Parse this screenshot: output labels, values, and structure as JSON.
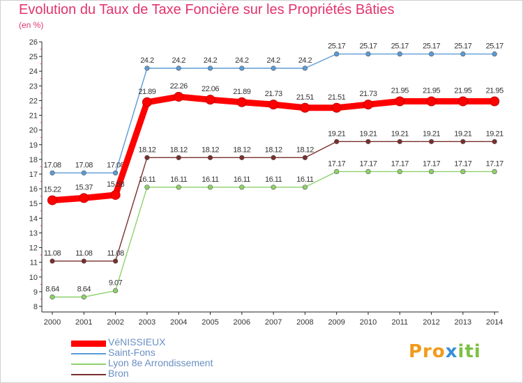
{
  "title": "Evolution du Taux de Taxe Foncière sur les Propriétés Bâties",
  "unit": "(en %)",
  "logo": {
    "p1": "Pro",
    "p2": "x",
    "p3": "iti"
  },
  "chart_data": {
    "type": "line",
    "title": "Evolution du Taux de Taxe Foncière sur les Propriétés Bâties",
    "ylabel": "(en %)",
    "xlabel": "",
    "ylim": [
      8,
      26
    ],
    "yticks": [
      8,
      9,
      10,
      11,
      12,
      13,
      14,
      15,
      16,
      17,
      18,
      19,
      20,
      21,
      22,
      23,
      24,
      25,
      26
    ],
    "categories": [
      "2000",
      "2001",
      "2002",
      "2003",
      "2004",
      "2005",
      "2006",
      "2007",
      "2008",
      "2009",
      "2010",
      "2011",
      "2012",
      "2013",
      "2014"
    ],
    "grid": false,
    "legend": "bottom-left",
    "series": [
      {
        "name": "VéNISSIEUX",
        "color": "#ff0000",
        "emphasis": true,
        "values": [
          15.22,
          15.37,
          15.58,
          21.89,
          22.26,
          22.06,
          21.89,
          21.73,
          21.51,
          21.51,
          21.73,
          21.95,
          21.95,
          21.95,
          21.95
        ],
        "labels": [
          "15.22",
          "15.37",
          "15.58",
          "21.89",
          "22.26",
          "22.06",
          "21.89",
          "21.73",
          "21.51",
          "21.51",
          "21.73",
          "21.95",
          "21.95",
          "21.95",
          "21.95"
        ]
      },
      {
        "name": "Saint-Fons",
        "color": "#5b9bd5",
        "emphasis": false,
        "values": [
          17.08,
          17.08,
          17.08,
          24.2,
          24.2,
          24.2,
          24.2,
          24.2,
          24.2,
          25.17,
          25.17,
          25.17,
          25.17,
          25.17,
          25.17
        ],
        "labels": [
          "17.08",
          "17.08",
          "17.08",
          "24.2",
          "24.2",
          "24.2",
          "24.2",
          "24.2",
          "24.2",
          "25.17",
          "25.17",
          "25.17",
          "25.17",
          "25.17",
          "25.17"
        ]
      },
      {
        "name": "Lyon 8e  Arrondissement",
        "color": "#8ed16a",
        "emphasis": false,
        "values": [
          8.64,
          8.64,
          9.07,
          16.11,
          16.11,
          16.11,
          16.11,
          16.11,
          16.11,
          17.17,
          17.17,
          17.17,
          17.17,
          17.17,
          17.17
        ],
        "labels": [
          "8.64",
          "8.64",
          "9.07",
          "16.11",
          "16.11",
          "16.11",
          "16.11",
          "16.11",
          "16.11",
          "17.17",
          "17.17",
          "17.17",
          "17.17",
          "17.17",
          "17.17"
        ]
      },
      {
        "name": "Bron",
        "color": "#7a2e2e",
        "emphasis": false,
        "values": [
          11.08,
          11.08,
          11.08,
          18.12,
          18.12,
          18.12,
          18.12,
          18.12,
          18.12,
          19.21,
          19.21,
          19.21,
          19.21,
          19.21,
          19.21
        ],
        "labels": [
          "11.08",
          "11.08",
          "11.08",
          "18.12",
          "18.12",
          "18.12",
          "18.12",
          "18.12",
          "18.12",
          "19.21",
          "19.21",
          "19.21",
          "19.21",
          "19.21",
          "19.21"
        ]
      }
    ]
  }
}
